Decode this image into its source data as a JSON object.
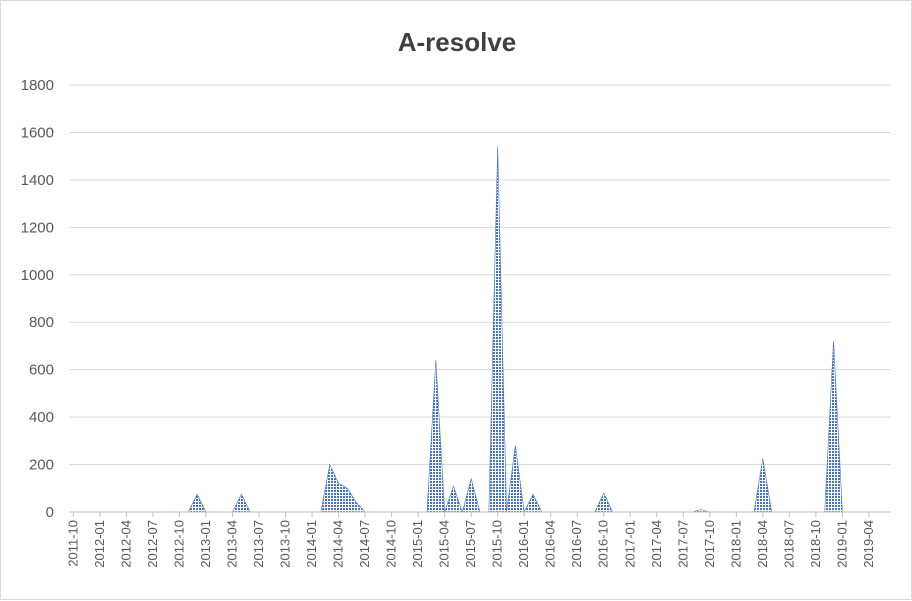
{
  "chart_data": {
    "type": "area",
    "title": "A-resolve",
    "xlabel": "",
    "ylabel": "",
    "ylim": [
      0,
      1800
    ],
    "yticks": [
      0,
      200,
      400,
      600,
      800,
      1000,
      1200,
      1400,
      1600,
      1800
    ],
    "grid": true,
    "legend": "none",
    "fill_color": "#4472c4",
    "x_tick_labels": [
      "2011-10",
      "2012-01",
      "2012-04",
      "2012-07",
      "2012-10",
      "2013-01",
      "2013-04",
      "2013-07",
      "2013-10",
      "2014-01",
      "2014-04",
      "2014-07",
      "2014-10",
      "2015-01",
      "2015-04",
      "2015-07",
      "2015-10",
      "2016-01",
      "2016-04",
      "2016-07",
      "2016-10",
      "2017-01",
      "2017-04",
      "2017-07",
      "2017-10",
      "2018-01",
      "2018-04",
      "2018-07",
      "2018-10",
      "2019-01",
      "2019-04"
    ],
    "x": [
      "2011-10",
      "2011-11",
      "2011-12",
      "2012-01",
      "2012-02",
      "2012-03",
      "2012-04",
      "2012-05",
      "2012-06",
      "2012-07",
      "2012-08",
      "2012-09",
      "2012-10",
      "2012-11",
      "2012-12",
      "2013-01",
      "2013-02",
      "2013-03",
      "2013-04",
      "2013-05",
      "2013-06",
      "2013-07",
      "2013-08",
      "2013-09",
      "2013-10",
      "2013-11",
      "2013-12",
      "2014-01",
      "2014-02",
      "2014-03",
      "2014-04",
      "2014-05",
      "2014-06",
      "2014-07",
      "2014-08",
      "2014-09",
      "2014-10",
      "2014-11",
      "2014-12",
      "2015-01",
      "2015-02",
      "2015-03",
      "2015-04",
      "2015-05",
      "2015-06",
      "2015-07",
      "2015-08",
      "2015-09",
      "2015-10",
      "2015-11",
      "2015-12",
      "2016-01",
      "2016-02",
      "2016-03",
      "2016-04",
      "2016-05",
      "2016-06",
      "2016-07",
      "2016-08",
      "2016-09",
      "2016-10",
      "2016-11",
      "2016-12",
      "2017-01",
      "2017-02",
      "2017-03",
      "2017-04",
      "2017-05",
      "2017-06",
      "2017-07",
      "2017-08",
      "2017-09",
      "2017-10",
      "2017-11",
      "2017-12",
      "2018-01",
      "2018-02",
      "2018-03",
      "2018-04",
      "2018-05",
      "2018-06",
      "2018-07",
      "2018-08",
      "2018-09",
      "2018-10",
      "2018-11",
      "2018-12",
      "2019-01",
      "2019-02",
      "2019-03",
      "2019-04",
      "2019-05",
      "2019-06"
    ],
    "values": [
      0,
      0,
      0,
      0,
      0,
      0,
      0,
      0,
      0,
      0,
      0,
      0,
      0,
      0,
      75,
      0,
      0,
      0,
      0,
      75,
      0,
      0,
      0,
      0,
      0,
      0,
      0,
      0,
      0,
      200,
      120,
      100,
      40,
      0,
      0,
      0,
      0,
      0,
      0,
      0,
      0,
      640,
      0,
      110,
      0,
      140,
      0,
      0,
      1540,
      0,
      280,
      0,
      75,
      0,
      0,
      0,
      0,
      0,
      0,
      0,
      80,
      0,
      0,
      0,
      0,
      0,
      0,
      0,
      0,
      0,
      0,
      10,
      0,
      0,
      0,
      0,
      0,
      0,
      225,
      0,
      0,
      0,
      0,
      0,
      0,
      0,
      720,
      0,
      0,
      0,
      0,
      0,
      0
    ]
  }
}
